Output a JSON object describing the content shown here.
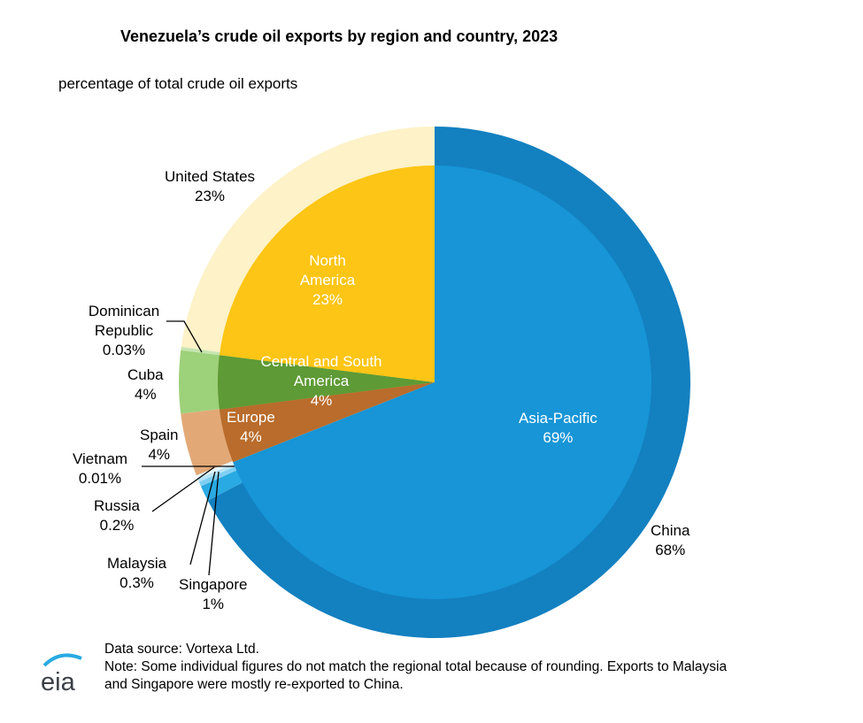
{
  "chart_data": {
    "type": "pie",
    "title": "Venezuela’s crude oil exports by region and country, 2023",
    "subtitle": "percentage of total crude oil exports",
    "inner_ring": [
      {
        "name": "Asia-Pacific",
        "label": "69%",
        "value": 69,
        "color": "#1795d6"
      },
      {
        "name": "Europe",
        "label": "4%",
        "value": 4,
        "color": "#b96c2b"
      },
      {
        "name": "Central and South America",
        "label": "4%",
        "value": 4,
        "color": "#5e9a35"
      },
      {
        "name": "North America",
        "label": "23%",
        "value": 23,
        "color": "#fdc515"
      }
    ],
    "outer_ring": [
      {
        "name": "China",
        "label": "68%",
        "value": 68,
        "color": "#1380c0"
      },
      {
        "name": "Singapore",
        "label": "1%",
        "value": 1,
        "color": "#29aae2"
      },
      {
        "name": "Malaysia",
        "label": "0.3%",
        "value": 0.3,
        "color": "#7fcff3"
      },
      {
        "name": "Russia",
        "label": "0.2%",
        "value": 0.2,
        "color": "#b9e4f8"
      },
      {
        "name": "Vietnam",
        "label": "0.01%",
        "value": 0.01,
        "color": "#e6f5fc"
      },
      {
        "name": "Spain",
        "label": "4%",
        "value": 4,
        "color": "#e2a977"
      },
      {
        "name": "Cuba",
        "label": "4%",
        "value": 4,
        "color": "#9dd17a"
      },
      {
        "name": "Dominican Republic",
        "label": "0.03%",
        "value": 0.03,
        "color": "#c6e5b0"
      },
      {
        "name": "United States",
        "label": "23%",
        "value": 23,
        "color": "#fdf2c8"
      }
    ]
  },
  "notes": {
    "source": "Data source: Vortexa Ltd.",
    "note1": "Note: Some individual figures do not match the regional total because of rounding. Exports to Malaysia",
    "note2": "and Singapore were mostly re-exported to China."
  },
  "logo": "eia"
}
